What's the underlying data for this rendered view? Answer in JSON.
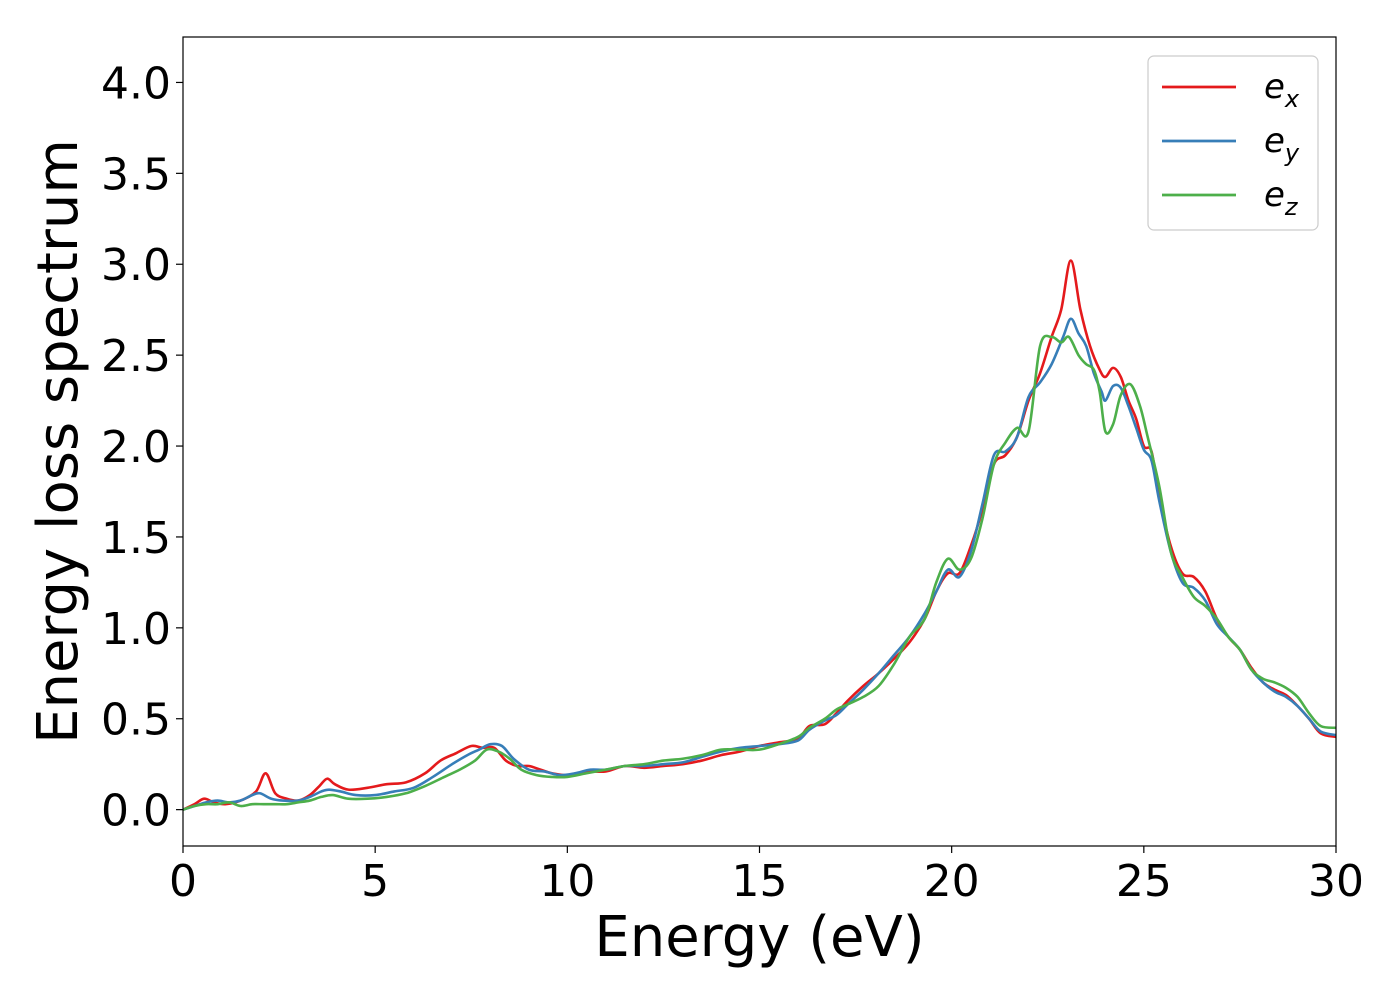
{
  "chart_data": {
    "type": "line",
    "xlabel": "Energy (eV)",
    "ylabel": "Energy loss spectrum",
    "xlim": [
      0,
      30
    ],
    "ylim": [
      -0.2,
      4.25
    ],
    "xticks": [
      0,
      5,
      10,
      15,
      20,
      25,
      30
    ],
    "xtick_labels": [
      "0",
      "5",
      "10",
      "15",
      "20",
      "25",
      "30"
    ],
    "yticks": [
      0.0,
      0.5,
      1.0,
      1.5,
      2.0,
      2.5,
      3.0,
      3.5,
      4.0
    ],
    "ytick_labels": [
      "0.0",
      "0.5",
      "1.0",
      "1.5",
      "2.0",
      "2.5",
      "3.0",
      "3.5",
      "4.0"
    ],
    "grid": false,
    "legend_position": "top-right",
    "series": [
      {
        "name": "e_x",
        "legend_base": "e",
        "legend_sub": "x",
        "color": "#e41a1c",
        "x": [
          0,
          0.3,
          0.55,
          0.8,
          1.1,
          1.5,
          1.9,
          2.15,
          2.4,
          2.7,
          3.0,
          3.3,
          3.55,
          3.75,
          3.95,
          4.3,
          4.8,
          5.3,
          5.8,
          6.3,
          6.7,
          7.1,
          7.5,
          7.8,
          8.1,
          8.4,
          8.7,
          9.0,
          9.3,
          9.6,
          10.0,
          10.5,
          11.0,
          11.5,
          12.0,
          12.5,
          13.0,
          13.5,
          14.0,
          14.5,
          15.0,
          15.5,
          16.0,
          16.3,
          16.7,
          17.0,
          17.3,
          17.7,
          18.1,
          18.5,
          18.9,
          19.3,
          19.6,
          19.9,
          20.2,
          20.5,
          20.8,
          21.1,
          21.4,
          21.7,
          22.0,
          22.3,
          22.6,
          22.85,
          23.1,
          23.35,
          23.6,
          23.85,
          24.0,
          24.2,
          24.4,
          24.6,
          24.8,
          25.0,
          25.2,
          25.4,
          25.7,
          26.0,
          26.3,
          26.6,
          26.9,
          27.2,
          27.5,
          27.8,
          28.1,
          28.4,
          28.7,
          29.0,
          29.3,
          29.6,
          30.0
        ],
        "values": [
          0.0,
          0.03,
          0.06,
          0.04,
          0.03,
          0.05,
          0.1,
          0.2,
          0.09,
          0.06,
          0.05,
          0.08,
          0.13,
          0.17,
          0.14,
          0.11,
          0.12,
          0.14,
          0.15,
          0.2,
          0.27,
          0.31,
          0.35,
          0.34,
          0.34,
          0.27,
          0.24,
          0.24,
          0.22,
          0.2,
          0.19,
          0.21,
          0.21,
          0.24,
          0.23,
          0.24,
          0.25,
          0.27,
          0.3,
          0.32,
          0.35,
          0.37,
          0.39,
          0.46,
          0.47,
          0.53,
          0.6,
          0.68,
          0.75,
          0.83,
          0.92,
          1.05,
          1.2,
          1.3,
          1.3,
          1.45,
          1.65,
          1.9,
          1.95,
          2.05,
          2.25,
          2.4,
          2.6,
          2.75,
          3.02,
          2.75,
          2.55,
          2.42,
          2.38,
          2.43,
          2.38,
          2.25,
          2.15,
          2.0,
          1.97,
          1.72,
          1.45,
          1.3,
          1.28,
          1.2,
          1.05,
          0.95,
          0.88,
          0.78,
          0.7,
          0.66,
          0.63,
          0.57,
          0.5,
          0.42,
          0.4
        ]
      },
      {
        "name": "e_y",
        "legend_base": "e",
        "legend_sub": "y",
        "color": "#377eb8",
        "x": [
          0,
          0.3,
          0.6,
          0.9,
          1.2,
          1.5,
          1.8,
          2.0,
          2.3,
          2.6,
          3.0,
          3.3,
          3.6,
          3.8,
          4.1,
          4.5,
          5.0,
          5.5,
          6.0,
          6.5,
          7.0,
          7.4,
          7.7,
          8.0,
          8.3,
          8.6,
          9.0,
          9.4,
          9.8,
          10.2,
          10.6,
          11.0,
          11.5,
          12.0,
          12.5,
          13.0,
          13.5,
          14.0,
          14.5,
          15.0,
          15.5,
          16.0,
          16.3,
          16.7,
          17.0,
          17.3,
          17.7,
          18.1,
          18.5,
          18.9,
          19.3,
          19.6,
          19.9,
          20.2,
          20.5,
          20.8,
          21.1,
          21.4,
          21.7,
          22.0,
          22.3,
          22.6,
          22.9,
          23.1,
          23.3,
          23.5,
          23.7,
          23.9,
          24.0,
          24.2,
          24.4,
          24.6,
          24.8,
          25.0,
          25.2,
          25.4,
          25.7,
          26.0,
          26.3,
          26.6,
          26.9,
          27.2,
          27.5,
          27.8,
          28.1,
          28.4,
          28.7,
          29.0,
          29.3,
          29.6,
          30.0
        ],
        "values": [
          0.0,
          0.02,
          0.04,
          0.05,
          0.04,
          0.05,
          0.08,
          0.09,
          0.06,
          0.05,
          0.05,
          0.07,
          0.1,
          0.11,
          0.1,
          0.08,
          0.08,
          0.1,
          0.12,
          0.18,
          0.25,
          0.3,
          0.33,
          0.36,
          0.35,
          0.28,
          0.22,
          0.21,
          0.19,
          0.2,
          0.22,
          0.22,
          0.24,
          0.24,
          0.25,
          0.26,
          0.29,
          0.32,
          0.34,
          0.35,
          0.36,
          0.38,
          0.44,
          0.49,
          0.52,
          0.58,
          0.66,
          0.75,
          0.85,
          0.95,
          1.08,
          1.2,
          1.32,
          1.28,
          1.42,
          1.68,
          1.95,
          1.97,
          2.05,
          2.27,
          2.35,
          2.45,
          2.6,
          2.7,
          2.62,
          2.55,
          2.4,
          2.3,
          2.25,
          2.33,
          2.32,
          2.22,
          2.1,
          1.98,
          1.92,
          1.7,
          1.42,
          1.25,
          1.22,
          1.15,
          1.02,
          0.95,
          0.88,
          0.77,
          0.7,
          0.65,
          0.62,
          0.57,
          0.5,
          0.43,
          0.41
        ]
      },
      {
        "name": "e_z",
        "legend_base": "e",
        "legend_sub": "z",
        "color": "#4daf4a",
        "x": [
          0,
          0.3,
          0.6,
          0.9,
          1.2,
          1.5,
          1.8,
          2.1,
          2.4,
          2.7,
          3.0,
          3.3,
          3.6,
          3.9,
          4.3,
          4.8,
          5.3,
          5.8,
          6.3,
          6.8,
          7.2,
          7.6,
          7.9,
          8.2,
          8.5,
          8.8,
          9.2,
          9.6,
          10.0,
          10.5,
          11.0,
          11.5,
          12.0,
          12.5,
          13.0,
          13.5,
          14.0,
          14.5,
          15.0,
          15.5,
          16.0,
          16.3,
          16.7,
          17.0,
          17.3,
          17.7,
          18.1,
          18.5,
          18.9,
          19.3,
          19.6,
          19.9,
          20.2,
          20.5,
          20.8,
          21.1,
          21.4,
          21.7,
          22.0,
          22.3,
          22.6,
          22.85,
          23.05,
          23.3,
          23.5,
          23.7,
          23.85,
          24.0,
          24.2,
          24.4,
          24.65,
          24.9,
          25.1,
          25.4,
          25.7,
          26.0,
          26.3,
          26.6,
          26.9,
          27.2,
          27.5,
          27.8,
          28.1,
          28.4,
          28.7,
          29.0,
          29.3,
          29.6,
          30.0
        ],
        "values": [
          0.0,
          0.02,
          0.03,
          0.03,
          0.04,
          0.02,
          0.03,
          0.03,
          0.03,
          0.03,
          0.04,
          0.05,
          0.07,
          0.08,
          0.06,
          0.06,
          0.07,
          0.09,
          0.13,
          0.18,
          0.22,
          0.27,
          0.33,
          0.32,
          0.28,
          0.22,
          0.19,
          0.18,
          0.18,
          0.2,
          0.22,
          0.24,
          0.25,
          0.27,
          0.28,
          0.3,
          0.33,
          0.33,
          0.33,
          0.36,
          0.4,
          0.45,
          0.5,
          0.55,
          0.58,
          0.62,
          0.68,
          0.8,
          0.95,
          1.05,
          1.25,
          1.38,
          1.32,
          1.38,
          1.6,
          1.9,
          2.02,
          2.1,
          2.08,
          2.55,
          2.6,
          2.57,
          2.6,
          2.5,
          2.45,
          2.42,
          2.3,
          2.08,
          2.12,
          2.28,
          2.34,
          2.22,
          2.05,
          1.78,
          1.42,
          1.28,
          1.17,
          1.12,
          1.05,
          0.95,
          0.88,
          0.77,
          0.72,
          0.7,
          0.67,
          0.62,
          0.53,
          0.46,
          0.45
        ]
      }
    ]
  }
}
